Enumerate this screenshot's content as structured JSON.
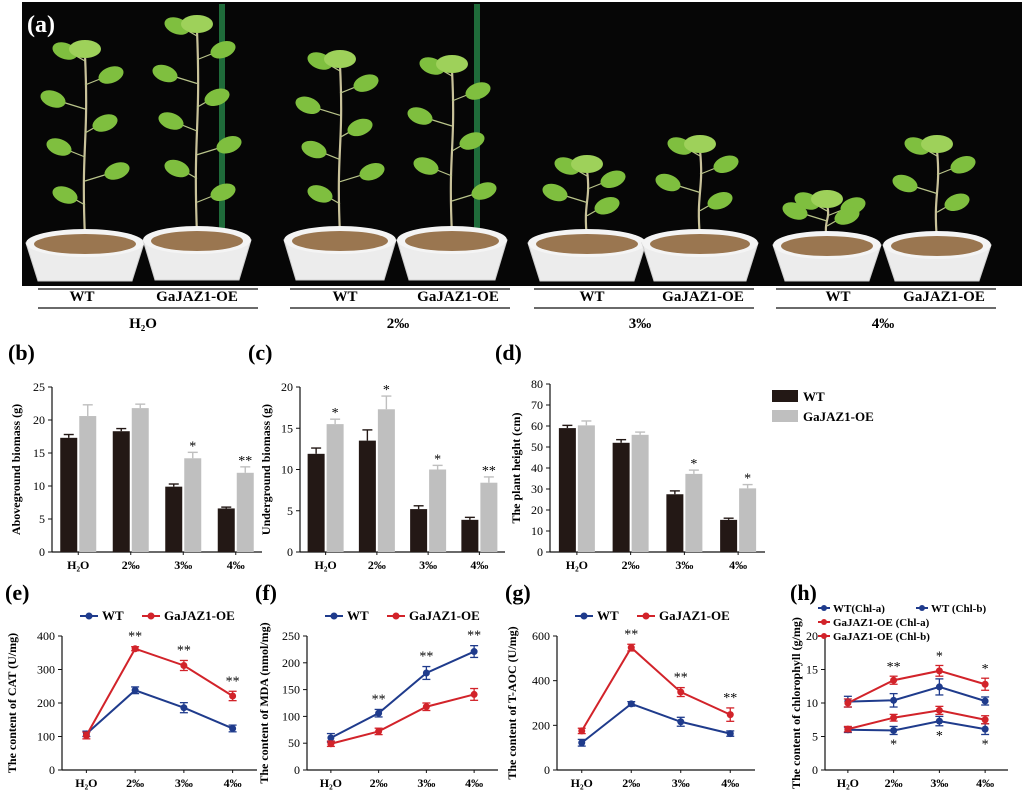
{
  "panel_a": {
    "tag": "(a)",
    "treatments": [
      {
        "label": "H₂O",
        "wt": "WT",
        "oe": "GaJAZ1-OE"
      },
      {
        "label": "2‰",
        "wt": "WT",
        "oe": "GaJAZ1-OE"
      },
      {
        "label": "3‰",
        "wt": "WT",
        "oe": "GaJAZ1-OE"
      },
      {
        "label": "4‰",
        "wt": "WT",
        "oe": "GaJAZ1-OE"
      }
    ]
  },
  "colors": {
    "wt_bar": "#231815",
    "oe_bar": "#bfbfbf",
    "wt_line": "#1f3b8c",
    "oe_line": "#d2232a",
    "photo_bg": "#060606",
    "pot": "#ececec",
    "soil": "#9a7650",
    "leaf": "#7fbf3f",
    "stake": "#1f6b3a"
  },
  "chart_data": [
    {
      "id": "b",
      "tag": "(b)",
      "type": "bar",
      "categories": [
        "H₂O",
        "2‰",
        "3‰",
        "4‰"
      ],
      "ylabel": "Aboveground biomass (g)",
      "ylim": [
        0,
        25
      ],
      "yticks": [
        0,
        5,
        10,
        15,
        20,
        25
      ],
      "series": [
        {
          "name": "WT",
          "values": [
            17.3,
            18.3,
            9.9,
            6.6
          ],
          "err": [
            0.5,
            0.4,
            0.4,
            0.2
          ]
        },
        {
          "name": "GaJAZ1-OE",
          "values": [
            20.6,
            21.8,
            14.2,
            12.0
          ],
          "err": [
            1.7,
            0.6,
            0.9,
            0.9
          ]
        }
      ],
      "annotations": [
        "",
        "",
        "*",
        "**"
      ]
    },
    {
      "id": "c",
      "tag": "(c)",
      "type": "bar",
      "categories": [
        "H₂O",
        "2‰",
        "3‰",
        "4‰"
      ],
      "ylabel": "Underground biomass (g)",
      "ylim": [
        0,
        20
      ],
      "yticks": [
        0,
        5,
        10,
        15,
        20
      ],
      "series": [
        {
          "name": "WT",
          "values": [
            11.9,
            13.5,
            5.2,
            3.9
          ],
          "err": [
            0.7,
            1.3,
            0.4,
            0.3
          ]
        },
        {
          "name": "GaJAZ1-OE",
          "values": [
            15.5,
            17.3,
            10.0,
            8.4
          ],
          "err": [
            0.6,
            1.6,
            0.5,
            0.7
          ]
        }
      ],
      "annotations": [
        "*",
        "*",
        "*",
        "**"
      ]
    },
    {
      "id": "d",
      "tag": "(d)",
      "type": "bar",
      "categories": [
        "H₂O",
        "2‰",
        "3‰",
        "4‰"
      ],
      "ylabel": "The plant height (cm)",
      "ylim": [
        0,
        80
      ],
      "yticks": [
        0,
        10,
        20,
        30,
        40,
        50,
        60,
        70,
        80
      ],
      "series": [
        {
          "name": "WT",
          "values": [
            59,
            52,
            27.5,
            15.3
          ],
          "err": [
            1.3,
            1.5,
            1.6,
            0.8
          ]
        },
        {
          "name": "GaJAZ1-OE",
          "values": [
            60.3,
            55.8,
            37.2,
            30.3
          ],
          "err": [
            2.1,
            1.3,
            1.8,
            1.8
          ]
        }
      ],
      "annotations": [
        "",
        "",
        "*",
        "*"
      ],
      "legend": [
        "WT",
        "GaJAZ1-OE"
      ]
    },
    {
      "id": "e",
      "tag": "(e)",
      "type": "line",
      "categories": [
        "H₂O",
        "2‰",
        "3‰",
        "4‰"
      ],
      "ylabel": "The content of CAT (U/mg)",
      "ylim": [
        0,
        400
      ],
      "yticks": [
        0,
        100,
        200,
        300,
        400
      ],
      "legend": [
        "WT",
        "GaJAZ1-OE"
      ],
      "series": [
        {
          "name": "WT",
          "color": "wt",
          "values": [
            108,
            238,
            186,
            124
          ],
          "err": [
            8,
            10,
            15,
            10
          ]
        },
        {
          "name": "GaJAZ1-OE",
          "color": "oe",
          "values": [
            103,
            362,
            312,
            221
          ],
          "err": [
            10,
            6,
            15,
            14
          ]
        }
      ],
      "annotations": [
        {
          "i": 1,
          "text": "**"
        },
        {
          "i": 2,
          "text": "**"
        },
        {
          "i": 3,
          "text": "**"
        }
      ]
    },
    {
      "id": "f",
      "tag": "(f)",
      "type": "line",
      "categories": [
        "H₂O",
        "2‰",
        "3‰",
        "4‰"
      ],
      "ylabel": "The content of MDA (nmol/mg)",
      "ylim": [
        0,
        250
      ],
      "yticks": [
        0,
        50,
        100,
        150,
        200,
        250
      ],
      "legend": [
        "WT",
        "GaJAZ1-OE"
      ],
      "series": [
        {
          "name": "WT",
          "color": "wt",
          "values": [
            60,
            106,
            181,
            221
          ],
          "err": [
            8,
            7,
            12,
            11
          ]
        },
        {
          "name": "GaJAZ1-OE",
          "color": "oe",
          "values": [
            49,
            72,
            118,
            141
          ],
          "err": [
            5,
            6,
            7,
            11
          ]
        }
      ],
      "annotations": [
        {
          "i": 1,
          "text": "**"
        },
        {
          "i": 2,
          "text": "**"
        },
        {
          "i": 3,
          "text": "**"
        }
      ]
    },
    {
      "id": "g",
      "tag": "(g)",
      "type": "line",
      "categories": [
        "H₂O",
        "2‰",
        "3‰",
        "4‰"
      ],
      "ylabel": "The content of T-AOC (U/mg)",
      "ylim": [
        0,
        600
      ],
      "yticks": [
        0,
        200,
        400,
        600
      ],
      "legend": [
        "WT",
        "GaJAZ1-OE"
      ],
      "series": [
        {
          "name": "WT",
          "color": "wt",
          "values": [
            122,
            296,
            216,
            163
          ],
          "err": [
            15,
            10,
            20,
            12
          ]
        },
        {
          "name": "GaJAZ1-OE",
          "color": "oe",
          "values": [
            175,
            548,
            349,
            248
          ],
          "err": [
            12,
            15,
            20,
            30
          ]
        }
      ],
      "annotations": [
        {
          "i": 1,
          "text": "**"
        },
        {
          "i": 2,
          "text": "**"
        },
        {
          "i": 3,
          "text": "**"
        }
      ]
    },
    {
      "id": "h",
      "tag": "(h)",
      "type": "line",
      "categories": [
        "H₂O",
        "2‰",
        "3‰",
        "4‰"
      ],
      "ylabel": "The content of chlorophyll (g/mg)",
      "ylim": [
        0,
        20
      ],
      "yticks": [
        0,
        5,
        10,
        15,
        20
      ],
      "legend": [
        "WT(Chl-a)",
        "WT (Chl-b)",
        "GaJAZ1-OE (Chl-a)",
        "GaJAZ1-OE (Chl-b)"
      ],
      "series": [
        {
          "name": "WT(Chl-a)",
          "color": "wt",
          "values": [
            10.2,
            10.4,
            12.4,
            10.3
          ],
          "err": [
            0.8,
            1.0,
            1.2,
            0.6
          ]
        },
        {
          "name": "WT (Chl-b)",
          "color": "wt",
          "values": [
            6.0,
            5.9,
            7.3,
            6.1
          ],
          "err": [
            0.4,
            0.6,
            0.7,
            0.8
          ]
        },
        {
          "name": "GaJAZ1-OE (Chl-a)",
          "color": "oe",
          "values": [
            10.0,
            13.4,
            14.8,
            12.8
          ],
          "err": [
            0.6,
            0.6,
            0.8,
            0.9
          ]
        },
        {
          "name": "GaJAZ1-OE (Chl-b)",
          "color": "oe",
          "values": [
            6.1,
            7.8,
            8.9,
            7.5
          ],
          "err": [
            0.4,
            0.5,
            0.6,
            0.6
          ]
        }
      ],
      "annotations": [
        {
          "i": 1,
          "text": "**",
          "pos": "above"
        },
        {
          "i": 2,
          "text": "*",
          "pos": "above"
        },
        {
          "i": 3,
          "text": "*",
          "pos": "above"
        },
        {
          "i": 1,
          "text": "*",
          "pos": "below"
        },
        {
          "i": 2,
          "text": "*",
          "pos": "below"
        },
        {
          "i": 3,
          "text": "*",
          "pos": "below"
        }
      ]
    }
  ]
}
